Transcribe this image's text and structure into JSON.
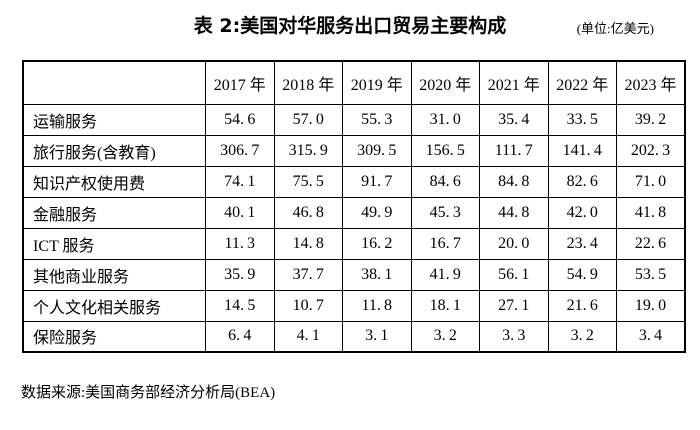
{
  "page": {
    "title": "表 2:美国对华服务出口贸易主要构成",
    "unit": "(单位:亿美元)",
    "source": "数据来源:美国商务部经济分析局(BEA)"
  },
  "chart_data": {
    "type": "table",
    "title": "表 2:美国对华服务出口贸易主要构成",
    "unit_label": "亿美元",
    "columns": [
      "2017 年",
      "2018 年",
      "2019 年",
      "2020 年",
      "2021 年",
      "2022 年",
      "2023 年"
    ],
    "rows": [
      {
        "label": "运输服务",
        "values": [
          54.6,
          57.0,
          55.3,
          31.0,
          35.4,
          33.5,
          39.2
        ]
      },
      {
        "label": "旅行服务(含教育)",
        "values": [
          306.7,
          315.9,
          309.5,
          156.5,
          111.7,
          141.4,
          202.3
        ]
      },
      {
        "label": "知识产权使用费",
        "values": [
          74.1,
          75.5,
          91.7,
          84.6,
          84.8,
          82.6,
          71.0
        ]
      },
      {
        "label": "金融服务",
        "values": [
          40.1,
          46.8,
          49.9,
          45.3,
          44.8,
          42.0,
          41.8
        ]
      },
      {
        "label": "ICT 服务",
        "values": [
          11.3,
          14.8,
          16.2,
          16.7,
          20.0,
          23.4,
          22.6
        ]
      },
      {
        "label": "其他商业服务",
        "values": [
          35.9,
          37.7,
          38.1,
          41.9,
          56.1,
          54.9,
          53.5
        ]
      },
      {
        "label": "个人文化相关服务",
        "values": [
          14.5,
          10.7,
          11.8,
          18.1,
          27.1,
          21.6,
          19.0
        ]
      },
      {
        "label": "保险服务",
        "values": [
          6.4,
          4.1,
          3.1,
          3.2,
          3.3,
          3.2,
          3.4
        ]
      }
    ],
    "source": "数据来源:美国商务部经济分析局(BEA)"
  },
  "colors": {
    "background": "#ffffff",
    "text": "#000000",
    "border": "#000000"
  }
}
